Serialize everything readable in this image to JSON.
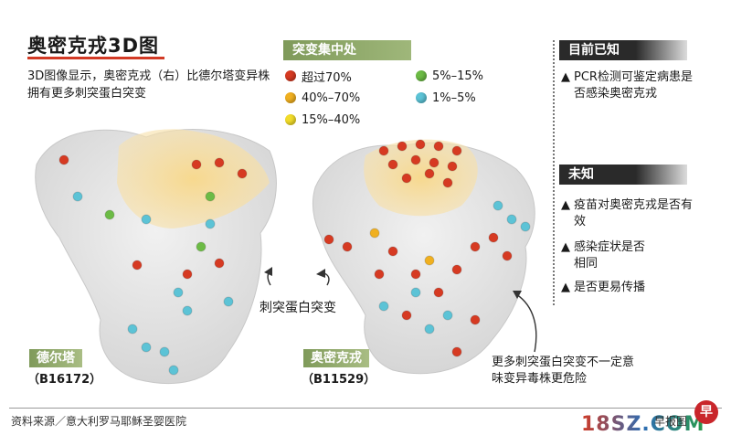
{
  "title": "奥密克戎3D图",
  "subtitle": "3D图像显示，奥密克戎（右）比德尔塔变异株拥有更多刺突蛋白突变",
  "legend": {
    "heading": "突变集中处",
    "items": [
      {
        "label": "超过70%",
        "color": "#d63a22"
      },
      {
        "label": "40%–70%",
        "color": "#f0b020"
      },
      {
        "label": "15%–40%",
        "color": "#f2dc2a"
      },
      {
        "label": "5%–15%",
        "color": "#6cbb45"
      },
      {
        "label": "1%–5%",
        "color": "#5cc3d6"
      }
    ]
  },
  "known": {
    "heading": "目前已知",
    "items": [
      {
        "marker": "▲",
        "text": "PCR检测可鉴定病患是否感染奥密克戎"
      }
    ]
  },
  "unknown": {
    "heading": "未知",
    "items": [
      {
        "marker": "▲",
        "text": "疫苗对奥密克戎是否有效"
      },
      {
        "marker": "▲",
        "text": "感染症状是否相同"
      },
      {
        "marker": "▲",
        "text": "是否更易传播"
      }
    ]
  },
  "center_label": "刺突蛋白突变",
  "delta": {
    "name": "德尔塔",
    "code": "（B16172）"
  },
  "omicron": {
    "name": "奥密克戎",
    "code": "（B11529）"
  },
  "note": "更多刺突蛋白突变不一定意味变异毒株更危险",
  "source": "资料来源／意大利罗马耶稣圣婴医院",
  "credit": "早报图",
  "watermark": "18SZ.COM",
  "badge": "早"
}
